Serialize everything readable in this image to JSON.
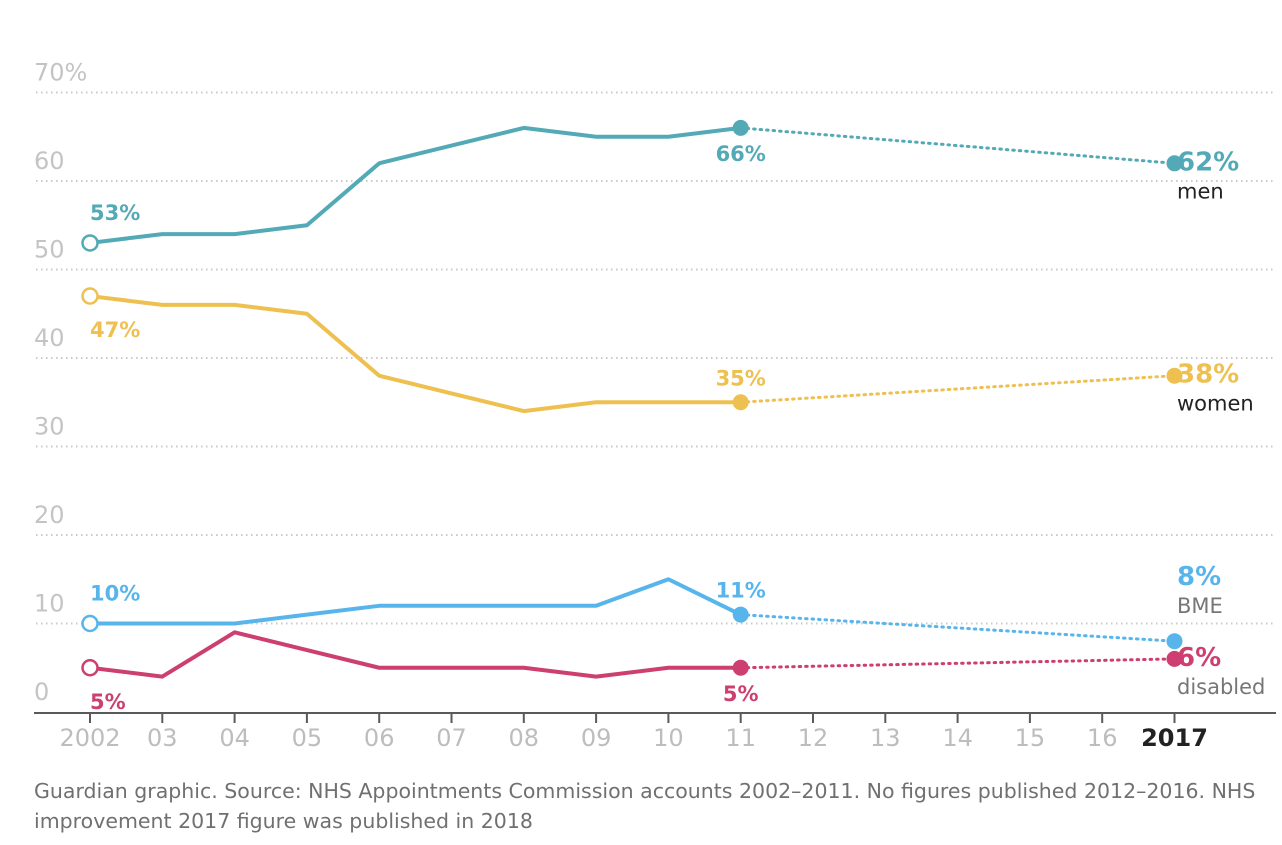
{
  "chart_data": {
    "type": "line",
    "y_ticks": [
      {
        "value": 70,
        "label": "70%"
      },
      {
        "value": 60,
        "label": "60"
      },
      {
        "value": 50,
        "label": "50"
      },
      {
        "value": 40,
        "label": "40"
      },
      {
        "value": 30,
        "label": "30"
      },
      {
        "value": 20,
        "label": "20"
      },
      {
        "value": 10,
        "label": "10"
      },
      {
        "value": 0,
        "label": "0"
      }
    ],
    "ylim": [
      0,
      70
    ],
    "x_ticks": [
      {
        "year": 2002,
        "label": "2002"
      },
      {
        "year": 2003,
        "label": "03"
      },
      {
        "year": 2004,
        "label": "04"
      },
      {
        "year": 2005,
        "label": "05"
      },
      {
        "year": 2006,
        "label": "06"
      },
      {
        "year": 2007,
        "label": "07"
      },
      {
        "year": 2008,
        "label": "08"
      },
      {
        "year": 2009,
        "label": "09"
      },
      {
        "year": 2010,
        "label": "10"
      },
      {
        "year": 2011,
        "label": "11"
      },
      {
        "year": 2012,
        "label": "12"
      },
      {
        "year": 2013,
        "label": "13"
      },
      {
        "year": 2014,
        "label": "14"
      },
      {
        "year": 2015,
        "label": "15"
      },
      {
        "year": 2016,
        "label": "16"
      },
      {
        "year": 2017,
        "label": "2017",
        "highlight": true
      }
    ],
    "series": [
      {
        "name": "men",
        "color": "#53aab6",
        "x": [
          2002,
          2003,
          2004,
          2005,
          2006,
          2007,
          2008,
          2009,
          2010,
          2011
        ],
        "y": [
          53,
          54,
          54,
          55,
          62,
          64,
          66,
          65,
          65,
          66
        ],
        "start_label": "53%",
        "start_label_pos": "above",
        "last_label": "66%",
        "last_label_pos": "below",
        "end_year": 2017,
        "end_value": 62,
        "end_label": "62%"
      },
      {
        "name": "women",
        "color": "#eec050",
        "x": [
          2002,
          2003,
          2004,
          2005,
          2006,
          2007,
          2008,
          2009,
          2010,
          2011
        ],
        "y": [
          47,
          46,
          46,
          45,
          38,
          36,
          34,
          35,
          35,
          35
        ],
        "start_label": "47%",
        "start_label_pos": "below",
        "last_label": "35%",
        "last_label_pos": "above",
        "end_year": 2017,
        "end_value": 38,
        "end_label": "38%"
      },
      {
        "name": "BME",
        "color": "#57b5ec",
        "x": [
          2002,
          2003,
          2004,
          2005,
          2006,
          2007,
          2008,
          2009,
          2010,
          2011
        ],
        "y": [
          10,
          10,
          10,
          11,
          12,
          12,
          12,
          12,
          15,
          11
        ],
        "start_label": "10%",
        "start_label_pos": "above",
        "last_label": "11%",
        "last_label_pos": "above",
        "end_year": 2017,
        "end_value": 8,
        "end_label": "8%"
      },
      {
        "name": "disabled",
        "color": "#cc3f70",
        "x": [
          2002,
          2003,
          2004,
          2005,
          2006,
          2007,
          2008,
          2009,
          2010,
          2011
        ],
        "y": [
          5,
          4,
          9,
          7,
          5,
          5,
          5,
          4,
          5,
          5
        ],
        "start_label": "5%",
        "start_label_pos": "below",
        "last_label": "5%",
        "last_label_pos": "below",
        "end_year": 2017,
        "end_value": 6,
        "end_label": "6%"
      }
    ]
  },
  "source": "Guardian graphic. Source: NHS Appointments Commission accounts 2002–2011. No figures published 2012–2016. NHS improvement 2017 figure was published in 2018"
}
